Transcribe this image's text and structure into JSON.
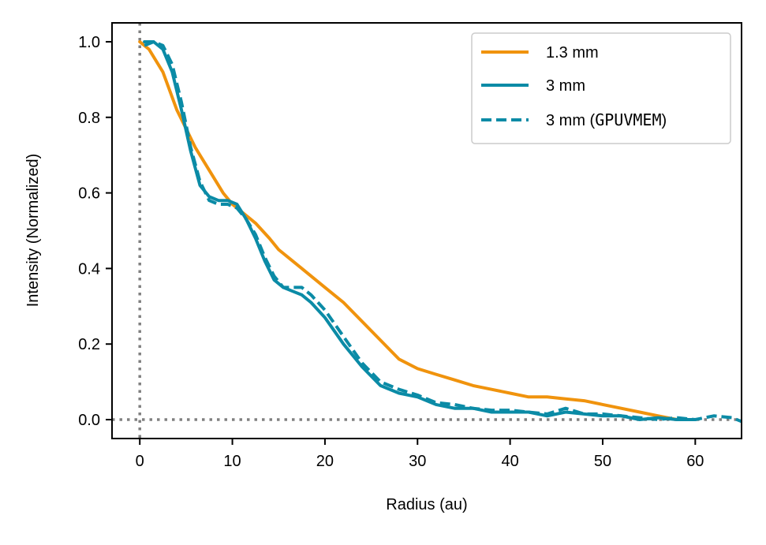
{
  "chart_data": {
    "type": "line",
    "title": "",
    "xlabel": "Radius (au)",
    "ylabel": "Intensity (Normalized)",
    "xlim": [
      -3,
      65
    ],
    "ylim": [
      -0.05,
      1.05
    ],
    "xticks": [
      0,
      10,
      20,
      30,
      40,
      50,
      60
    ],
    "xtick_labels": [
      "0",
      "10",
      "20",
      "30",
      "40",
      "50",
      "60"
    ],
    "yticks": [
      0.0,
      0.2,
      0.4,
      0.6,
      0.8,
      1.0
    ],
    "ytick_labels": [
      "0.0",
      "0.2",
      "0.4",
      "0.6",
      "0.8",
      "1.0"
    ],
    "grid": false,
    "legend_position": "top-right",
    "reference_lines": [
      {
        "orientation": "vertical",
        "value": 0,
        "style": "dotted",
        "color": "#808080"
      },
      {
        "orientation": "horizontal",
        "value": 0,
        "style": "dotted",
        "color": "#808080"
      }
    ],
    "series": [
      {
        "name": "1.3 mm",
        "color": "#F0930D",
        "style": "solid",
        "x": [
          0,
          1,
          2.5,
          4,
          5,
          6,
          7.5,
          9,
          10,
          11,
          12.5,
          14,
          15,
          16.5,
          18,
          20,
          22,
          24,
          26,
          28,
          30,
          32,
          34,
          36,
          38,
          40,
          42,
          44,
          46,
          48,
          50,
          52,
          54,
          56,
          58,
          60
        ],
        "values": [
          1.0,
          0.98,
          0.92,
          0.82,
          0.77,
          0.72,
          0.66,
          0.6,
          0.57,
          0.55,
          0.52,
          0.48,
          0.45,
          0.42,
          0.39,
          0.35,
          0.31,
          0.26,
          0.21,
          0.16,
          0.135,
          0.12,
          0.105,
          0.09,
          0.08,
          0.07,
          0.06,
          0.06,
          0.055,
          0.05,
          0.04,
          0.03,
          0.02,
          0.01,
          0.0,
          0.0
        ]
      },
      {
        "name": "3 mm",
        "color": "#0B8BA6",
        "style": "solid",
        "x": [
          0.5,
          1.5,
          2.5,
          3.5,
          4.5,
          5.5,
          6.5,
          7.5,
          8.5,
          9.5,
          10.5,
          11.5,
          12.5,
          13.5,
          14.5,
          15.5,
          16.5,
          17.5,
          18.5,
          20,
          22,
          24,
          26,
          28,
          30,
          32,
          34,
          36,
          38,
          40,
          42,
          44,
          46,
          48,
          50,
          52,
          54,
          56,
          58,
          60
        ],
        "values": [
          1.0,
          1.0,
          0.98,
          0.92,
          0.82,
          0.71,
          0.62,
          0.59,
          0.58,
          0.58,
          0.57,
          0.53,
          0.48,
          0.42,
          0.37,
          0.35,
          0.34,
          0.33,
          0.31,
          0.27,
          0.2,
          0.14,
          0.09,
          0.07,
          0.06,
          0.04,
          0.03,
          0.03,
          0.02,
          0.02,
          0.02,
          0.01,
          0.02,
          0.015,
          0.01,
          0.01,
          0.0,
          0.005,
          0.0,
          0.0
        ]
      },
      {
        "name": "3 mm (GPUVMEM)",
        "color": "#0B8BA6",
        "style": "dashed",
        "x": [
          0.5,
          1.5,
          2.5,
          3.5,
          4.5,
          5.5,
          6.5,
          7.5,
          8.5,
          9.5,
          10.5,
          11.5,
          12.5,
          13.5,
          14.5,
          15.5,
          16.5,
          17.5,
          18.5,
          20,
          22,
          24,
          26,
          28,
          30,
          32,
          34,
          36,
          38,
          40,
          42,
          44,
          46,
          48,
          50,
          52,
          54,
          56,
          58,
          60,
          62,
          64,
          65
        ],
        "values": [
          0.99,
          1.0,
          0.99,
          0.94,
          0.84,
          0.72,
          0.63,
          0.58,
          0.57,
          0.57,
          0.56,
          0.53,
          0.49,
          0.43,
          0.38,
          0.35,
          0.35,
          0.35,
          0.33,
          0.29,
          0.22,
          0.15,
          0.1,
          0.08,
          0.065,
          0.045,
          0.04,
          0.03,
          0.025,
          0.025,
          0.02,
          0.015,
          0.03,
          0.015,
          0.015,
          0.01,
          0.005,
          0.0,
          0.005,
          0.0,
          0.01,
          0.005,
          -0.005
        ]
      }
    ]
  }
}
